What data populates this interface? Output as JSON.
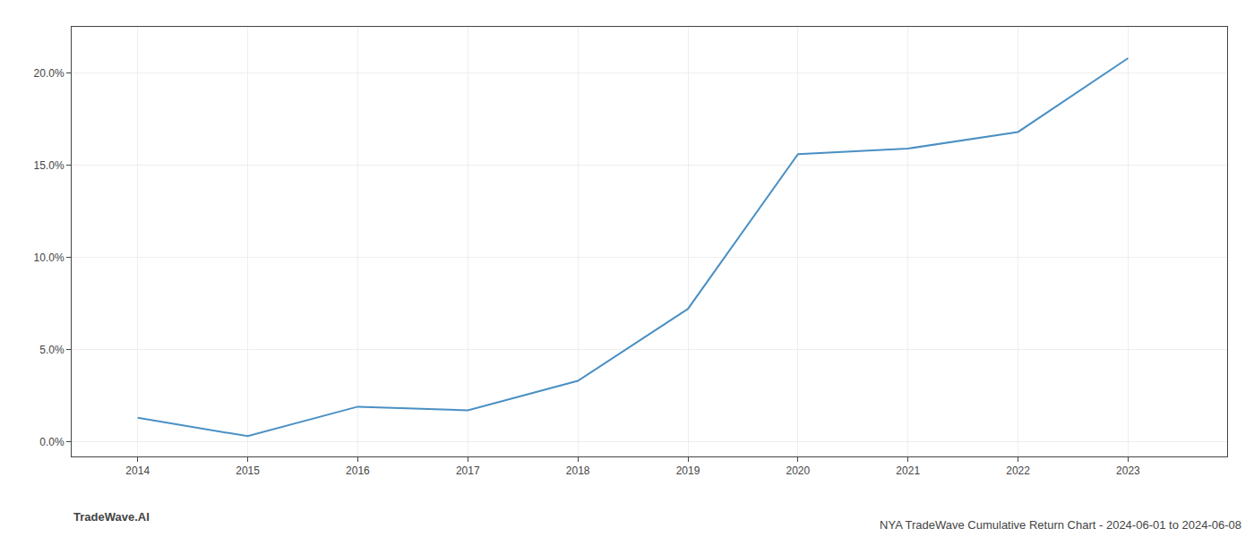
{
  "chart_data": {
    "type": "line",
    "title": "NYA TradeWave Cumulative Return Chart - 2024-06-01 to 2024-06-08",
    "annotations": [
      "TradeWave.AI"
    ],
    "x": [
      2014,
      2015,
      2016,
      2017,
      2018,
      2019,
      2020,
      2021,
      2022,
      2023
    ],
    "values": [
      1.3,
      0.3,
      1.9,
      1.7,
      3.3,
      7.2,
      15.6,
      15.9,
      16.8,
      20.8
    ],
    "color": "#4a90c4",
    "xlim": [
      2013.4,
      2023.9
    ],
    "xticks": [
      2014,
      2015,
      2016,
      2017,
      2018,
      2019,
      2020,
      2021,
      2022,
      2023
    ],
    "ylim": [
      -0.8,
      22.5
    ],
    "yticks": [
      {
        "value": 0.0,
        "label": "0.0%"
      },
      {
        "value": 5.0,
        "label": "5.0%"
      },
      {
        "value": 10.0,
        "label": "10.0%"
      },
      {
        "value": 15.0,
        "label": "15.0%"
      },
      {
        "value": 20.0,
        "label": "20.0%"
      }
    ],
    "grid": true
  }
}
